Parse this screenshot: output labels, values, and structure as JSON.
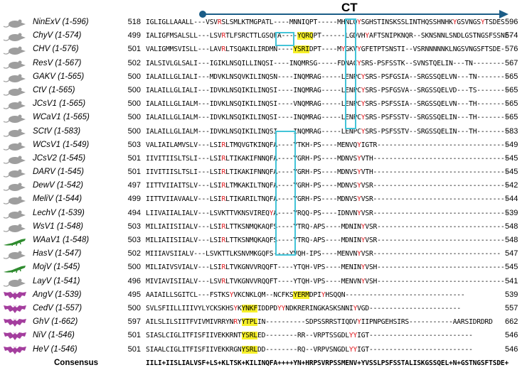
{
  "header": {
    "label": "CT"
  },
  "colors": {
    "arrow": "#1b5d87",
    "box": "#43c4d8",
    "red": "#e0161b",
    "yellow": "#f6f02a",
    "rodent": "#9e9e9e",
    "lizard": "#2e8b2e",
    "bat": "#a43e9e"
  },
  "rows": [
    {
      "icon": "rodent",
      "name": "NinExV (1-596)",
      "start": "518",
      "end": "596",
      "seq": [
        [
          "IGLIGLLAAALL---VSV"
        ],
        [
          "R",
          "r"
        ],
        [
          "SLSMLKTMGPATL----MNNIQPT-----MHNLQ"
        ],
        [
          "Y",
          "r"
        ],
        [
          "SGHSTINSKSSLINTHQSSHNHK"
        ],
        [
          "Y",
          "r"
        ],
        [
          "GSVNGS"
        ],
        [
          "Y",
          "r"
        ],
        [
          "TSDES"
        ]
      ]
    },
    {
      "icon": "rodent",
      "name": "ChyV (1-574)",
      "start": "499",
      "end": "574",
      "seq": [
        [
          "IALIGFMSALSLL---LSV"
        ],
        [
          "R",
          "r"
        ],
        [
          "TLFSRCTTLGSQFA----"
        ],
        [
          "YQRQ",
          "y"
        ],
        [
          "PT------LGDVH"
        ],
        [
          "Y",
          "r"
        ],
        [
          "AFTSNIPKNQR--SKNSNNLSNDLGSTNGSFSSNE-"
        ]
      ]
    },
    {
      "icon": "rodent",
      "name": "CHV (1-576)",
      "start": "501",
      "end": "576",
      "seq": [
        [
          "VALIGMMSVISLL---LAV"
        ],
        [
          "R",
          "r"
        ],
        [
          "LTSQAKILIRDMN----"
        ],
        [
          "YSRI",
          "y"
        ],
        [
          "DPT----M"
        ],
        [
          "Y",
          "r"
        ],
        [
          "GKV"
        ],
        [
          "Y",
          "r"
        ],
        [
          "GFETPTSNSTI--VSRNNNNNKLNGSVNGSFTSDE-"
        ]
      ]
    },
    {
      "icon": "rodent",
      "name": "ResV (1-567)",
      "start": "502",
      "end": "567",
      "seq": [
        [
          "IALSIVLGLSALI---IGIKLNSQILLINQSI----INQMRSG-----FDNAC"
        ],
        [
          "Y",
          "r"
        ],
        [
          "SRS_PSFSSTK--SVNSTQELIN---TN--------"
        ]
      ]
    },
    {
      "icon": "rodent",
      "name": "GAKV (1-565)",
      "start": "500",
      "end": "565",
      "seq": [
        [
          "IALAILLGLIALI---MDVKLNSQVKILINQSN----INQMRAG-----LENPC"
        ],
        [
          "Y",
          "r"
        ],
        [
          "SRS_PSFGSIA--SRGSSQELVN---TN--------"
        ]
      ]
    },
    {
      "icon": "rodent",
      "name": "CtV (1-565)",
      "start": "500",
      "end": "565",
      "seq": [
        [
          "IALAILLGLIALI---IDVKLNSQIKILINQSI----INQMRAG-----LENPC"
        ],
        [
          "Y",
          "r"
        ],
        [
          "SRS_PSFGSVA--SRGSSQELVD---TS--------"
        ]
      ]
    },
    {
      "icon": "rodent",
      "name": "JCsV1 (1-565)",
      "start": "500",
      "end": "565",
      "seq": [
        [
          "IALAILLGLIALM---IDVKLNSQIKILINQSI----VNQMRAG-----LENPC"
        ],
        [
          "Y",
          "r"
        ],
        [
          "SRS_PSFSSIA--SRGSSQELVN---TH--------"
        ]
      ]
    },
    {
      "icon": "rodent",
      "name": "WCaV1 (1-565)",
      "start": "500",
      "end": "565",
      "seq": [
        [
          "IALAILLGLIALM---IDVKLNSQIKILINQSI----INQMRAG-----LENPC"
        ],
        [
          "Y",
          "r"
        ],
        [
          "SRS_PSFSSTV--SRGSSQELIN---TH--------"
        ]
      ]
    },
    {
      "icon": "rodent",
      "name": "SCtV (1-583)",
      "start": "500",
      "end": "583",
      "seq": [
        [
          "IALAILLGLIALM---IDVKLNSQIKILINQSI----INQMRAG-----LENPC"
        ],
        [
          "Y",
          "r"
        ],
        [
          "SRS_PSFSSTV--SRGSSQELIN---TH--------"
        ]
      ]
    },
    {
      "icon": "rodent",
      "name": "WCsV1 (1-549)",
      "start": "503",
      "end": "549",
      "seq": [
        [
          "VALIAILAMVSLV---LSI"
        ],
        [
          "R",
          "r"
        ],
        [
          "LTMQVGTKINQFA----YTKH_PS----MENVQ"
        ],
        [
          "Y",
          "r"
        ],
        [
          "IGTR---------------------------------"
        ]
      ]
    },
    {
      "icon": "rodent",
      "name": "JCsV2 (1-545)",
      "start": "501",
      "end": "545",
      "seq": [
        [
          "IIVITIISLTSLI---LSI"
        ],
        [
          "R",
          "r"
        ],
        [
          "LTIKAKIFNNQFA----YGRH_PS----MDNVS"
        ],
        [
          "Y",
          "r"
        ],
        [
          "VTH----------------------------------"
        ]
      ]
    },
    {
      "icon": "rodent",
      "name": "DARV (1-545)",
      "start": "501",
      "end": "545",
      "seq": [
        [
          "IIVITIISLTSLI---LSI"
        ],
        [
          "R",
          "r"
        ],
        [
          "LTIKAKIFNNQFA----YGRH_PS----MDNVS"
        ],
        [
          "Y",
          "r"
        ],
        [
          "VTH----------------------------------"
        ]
      ]
    },
    {
      "icon": "rodent",
      "name": "DewV (1-542)",
      "start": "497",
      "end": "542",
      "seq": [
        [
          "IITTVIIAITSLV---LSI"
        ],
        [
          "R",
          "r"
        ],
        [
          "LTMKAKILTNQFA----YGRH_PS----MDNVS"
        ],
        [
          "Y",
          "r"
        ],
        [
          "VSR----------------------------------"
        ]
      ]
    },
    {
      "icon": "rodent",
      "name": "MeliV (1-544)",
      "start": "499",
      "end": "544",
      "seq": [
        [
          "IITTVIIAVAALV---LSI"
        ],
        [
          "R",
          "r"
        ],
        [
          "LTIKARILTNQFA----YGRH_PS----MDNVS"
        ],
        [
          "Y",
          "r"
        ],
        [
          "VSR----------------------------------"
        ]
      ]
    },
    {
      "icon": "rodent",
      "name": "LechV (1-539)",
      "start": "494",
      "end": "539",
      "seq": [
        [
          "LIIVAIIALIALV---LSVKTTVKNSVIREQ"
        ],
        [
          "Y",
          "r"
        ],
        [
          "A----YRQQ_PS----IDNVN"
        ],
        [
          "Y",
          "r"
        ],
        [
          "VSR----------------------------------"
        ]
      ]
    },
    {
      "icon": "rodent",
      "name": "WsV1 (1-548)",
      "start": "503",
      "end": "548",
      "seq": [
        [
          "MILIAIISIIALV---LSI"
        ],
        [
          "R",
          "r"
        ],
        [
          "LTTKSNMQKAQFS----YTRQ_APS----MDNIN"
        ],
        [
          "Y",
          "r"
        ],
        [
          "VSR--------------------------------"
        ]
      ]
    },
    {
      "icon": "lizard",
      "name": "WAaV1 (1-548)",
      "start": "503",
      "end": "548",
      "seq": [
        [
          "MILIAIISIIALV---LSI"
        ],
        [
          "R",
          "r"
        ],
        [
          "LTTKSNMQKAQFS----YTRQ_APS----MDNIN"
        ],
        [
          "Y",
          "r"
        ],
        [
          "VSR--------------------------------"
        ]
      ]
    },
    {
      "icon": "rodent",
      "name": "HasV (1-547)",
      "start": "502",
      "end": "547",
      "seq": [
        [
          "MIIIAVSIIALV---LSVKTTLKSNVMKGQFS----YVQH_IPS----MENVN"
        ],
        [
          "Y",
          "r"
        ],
        [
          "VSR--------------------------------"
        ]
      ]
    },
    {
      "icon": "lizard",
      "name": "MojV (1-545)",
      "start": "500",
      "end": "545",
      "seq": [
        [
          "MILIAIVSVIALV---LSI"
        ],
        [
          "R",
          "r"
        ],
        [
          "LTVKGNVVRQQFT----YTQH_VPS----MENIN"
        ],
        [
          "Y",
          "r"
        ],
        [
          "VSH--------------------------------"
        ]
      ]
    },
    {
      "icon": "rodent",
      "name": "LayV (1-541)",
      "start": "496",
      "end": "541",
      "seq": [
        [
          "MIVIAVISIIALV---LSV"
        ],
        [
          "R",
          "r"
        ],
        [
          "LTVKGNVVRQQFT----YTQH_VPS----MENVN"
        ],
        [
          "Y",
          "r"
        ],
        [
          "VSH--------------------------------"
        ]
      ]
    },
    {
      "icon": "bat",
      "name": "AngV (1-539)",
      "start": "495",
      "end": "539",
      "seq": [
        [
          "AAIAILLSGITCL---FSTKS"
        ],
        [
          "Y",
          "r"
        ],
        [
          "VKCNKLQM--NCFKS"
        ],
        [
          "YERM",
          "y"
        ],
        [
          "DPI"
        ],
        [
          "Y",
          "r"
        ],
        [
          "HSQQN------------------------------"
        ]
      ]
    },
    {
      "icon": "bat",
      "name": "CedV (1-557)",
      "start": "500",
      "end": "557",
      "seq": [
        [
          "SVLSFIILLIIIVYLYCKSKHS"
        ],
        [
          "Y",
          "r"
        ],
        [
          "K"
        ],
        [
          "YNKF",
          "y"
        ],
        [
          "IDDPD"
        ],
        [
          "YY",
          "r"
        ],
        [
          "NDKRERINGKASKSNNI"
        ],
        [
          "Y",
          "r"
        ],
        [
          "VGD-----------------------"
        ]
      ]
    },
    {
      "icon": "bat",
      "name": "GhV (1-662)",
      "start": "597",
      "end": "662",
      "seq": [
        [
          "AILSLILSIITFVIVMIVRRYN"
        ],
        [
          "R",
          "r"
        ],
        [
          "Y"
        ],
        [
          "YTPL",
          "y"
        ],
        [
          "IN----------SDPSSRRSTIQDV"
        ],
        [
          "Y",
          "r"
        ],
        [
          "IIPNPGEHSIRS-----------AARSIDRDRD"
        ]
      ]
    },
    {
      "icon": "bat",
      "name": "NiV (1-546)",
      "start": "501",
      "end": "546",
      "seq": [
        [
          "SIASLCIGLITFISFIIVEKKRNT"
        ],
        [
          "YSRL",
          "y"
        ],
        [
          "ED--------RR--VRPTSSGDL"
        ],
        [
          "YY",
          "r"
        ],
        [
          "IGT--------------------------"
        ]
      ]
    },
    {
      "icon": "bat",
      "name": "HeV (1-546)",
      "start": "501",
      "end": "546",
      "seq": [
        [
          "SIAALCIGLITFISFIIVEKKRGN"
        ],
        [
          "YSRL",
          "y"
        ],
        [
          "DD--------RQ--VRPVSNGDL"
        ],
        [
          "YY",
          "r"
        ],
        [
          "IGT--------------------------"
        ]
      ]
    }
  ],
  "consensus": {
    "label": "Consensus",
    "seq": "IILI+IISLIALVSF+LS+KLTSK+KILINQFA++++YN+HRPSVRPSSMENV+YVSSLPSFSSTALISKGSSQEL+N+GSTNGSFTSDE+"
  }
}
